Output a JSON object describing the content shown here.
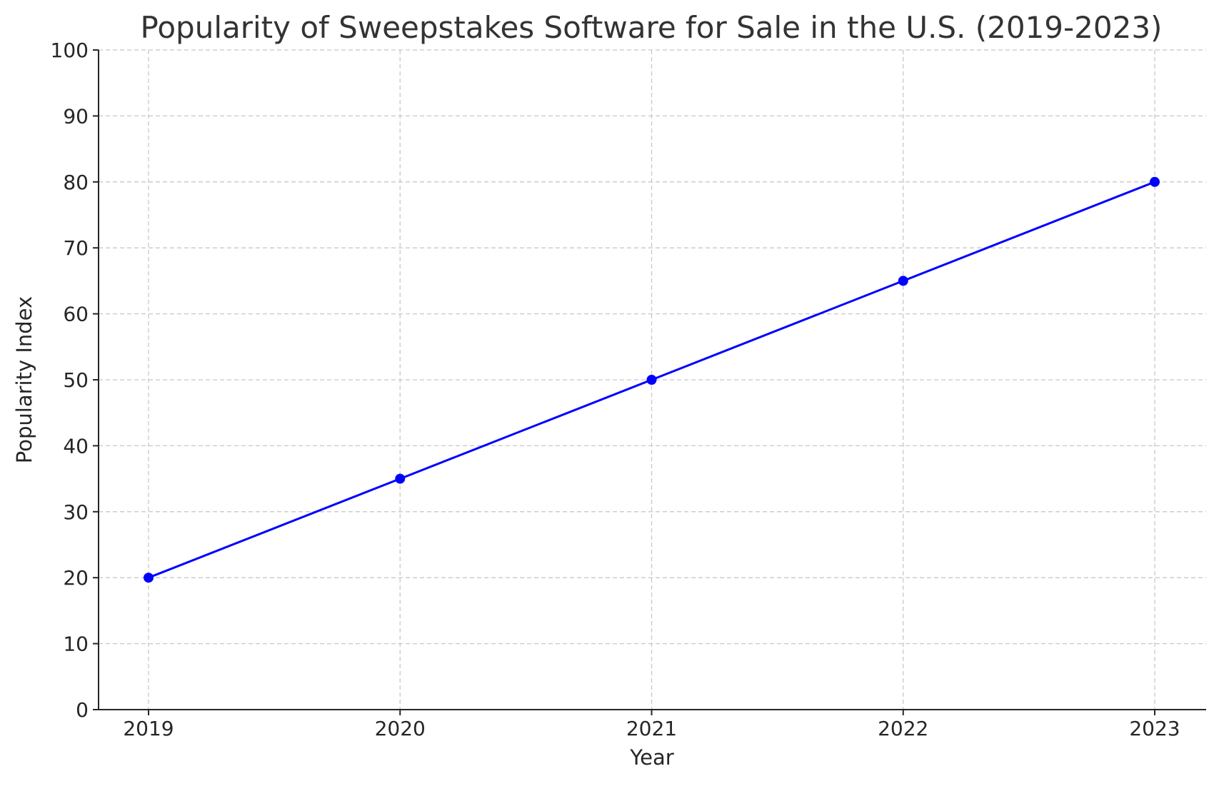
{
  "chart_data": {
    "type": "line",
    "title": "Popularity of Sweepstakes Software for Sale in the U.S. (2019-2023)",
    "xlabel": "Year",
    "ylabel": "Popularity Index",
    "categories": [
      "2019",
      "2020",
      "2021",
      "2022",
      "2023"
    ],
    "values": [
      20,
      35,
      50,
      65,
      80
    ],
    "ylim": [
      0,
      100
    ],
    "yticks": [
      "0",
      "10",
      "20",
      "30",
      "40",
      "50",
      "60",
      "70",
      "80",
      "90",
      "100"
    ],
    "grid": true,
    "marker": "circle",
    "color": "#0000ff"
  }
}
